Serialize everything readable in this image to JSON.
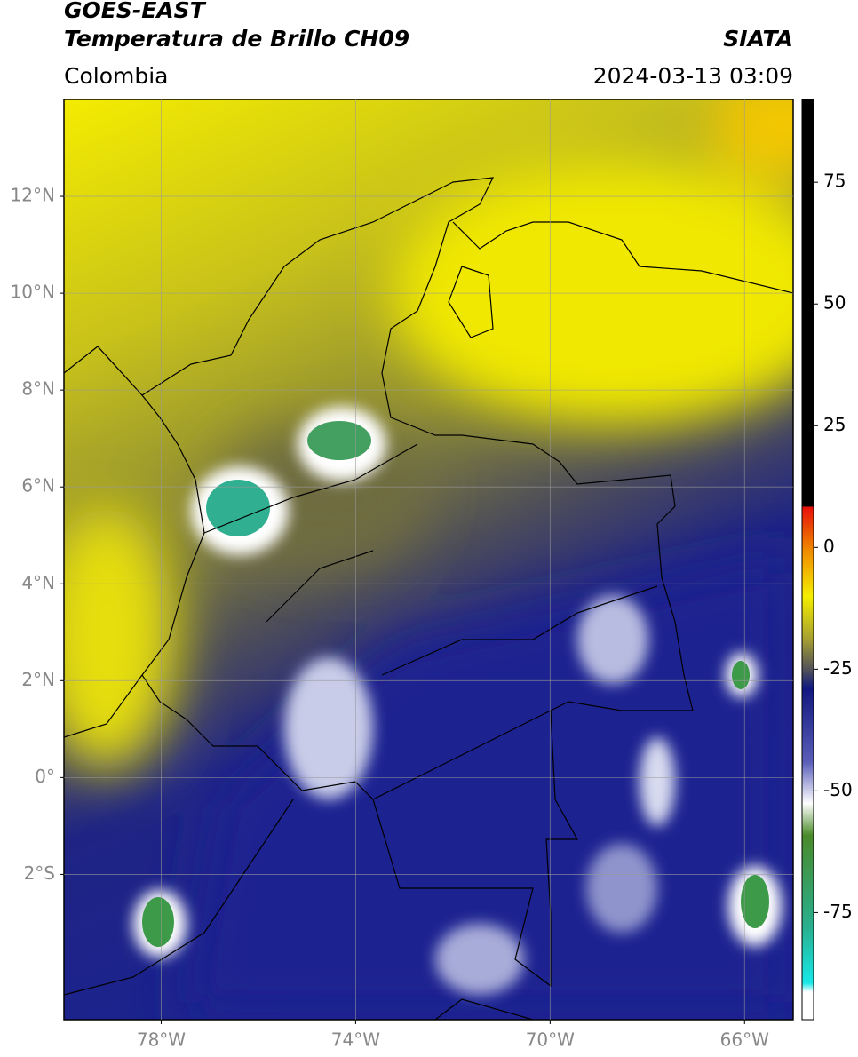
{
  "header": {
    "title": "GOES-EAST",
    "subtitle": "Temperatura de Brillo CH09",
    "region": "Colombia",
    "source": "SIATA",
    "datetime": "2024-03-13 03:09"
  },
  "map": {
    "xlim": [
      -80,
      -65
    ],
    "ylim": [
      -5,
      14
    ],
    "xticks": [
      {
        "value": -78,
        "label": "78°W"
      },
      {
        "value": -74,
        "label": "74°W"
      },
      {
        "value": -70,
        "label": "70°W"
      },
      {
        "value": -66,
        "label": "66°W"
      }
    ],
    "yticks": [
      {
        "value": 12,
        "label": "12°N"
      },
      {
        "value": 10,
        "label": "10°N"
      },
      {
        "value": 8,
        "label": "8°N"
      },
      {
        "value": 6,
        "label": "6°N"
      },
      {
        "value": 4,
        "label": "4°N"
      },
      {
        "value": 2,
        "label": "2°N"
      },
      {
        "value": 0,
        "label": "0°"
      },
      {
        "value": -2,
        "label": "2°S"
      }
    ],
    "grid": true
  },
  "colorbar": {
    "lim": [
      -97,
      92
    ],
    "ticks": [
      75,
      50,
      25,
      0,
      -25,
      -50,
      -75
    ]
  }
}
